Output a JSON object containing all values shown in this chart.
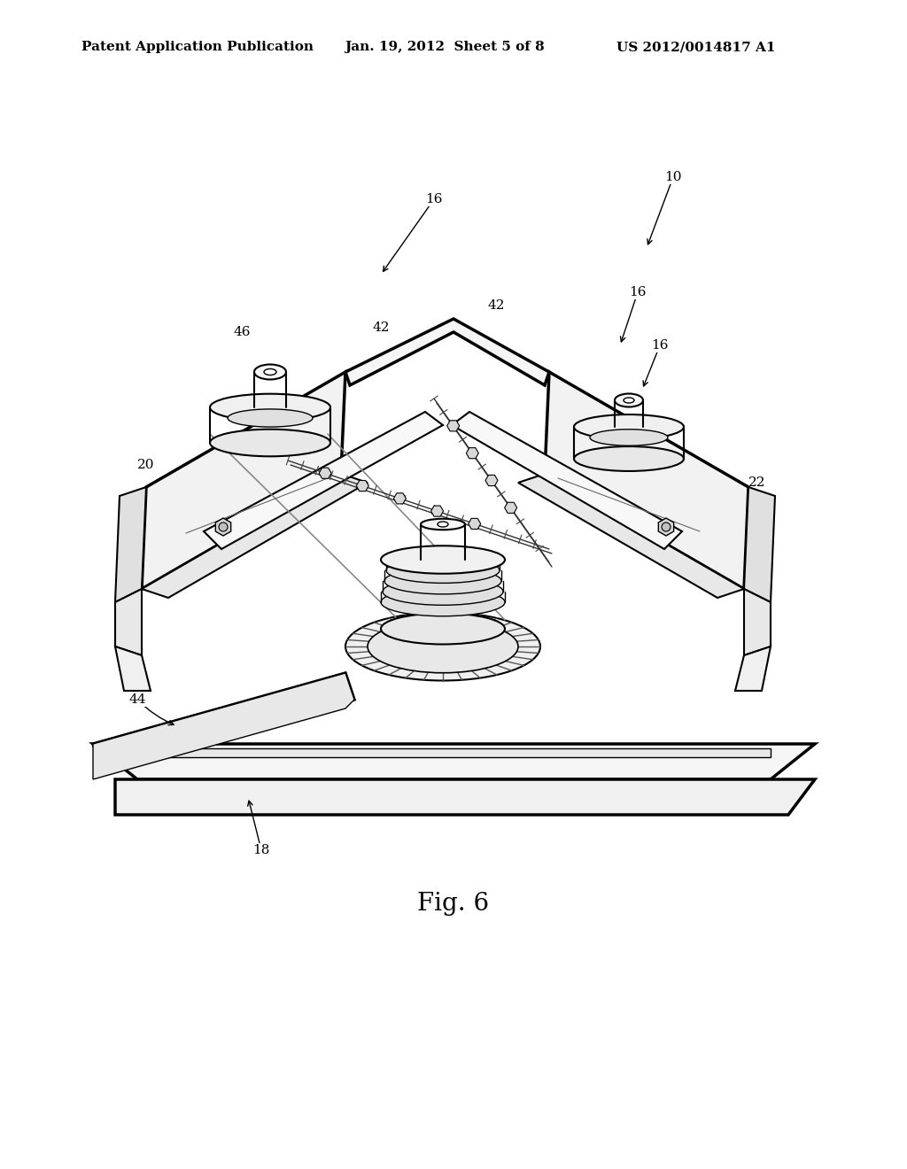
{
  "bg_color": "#ffffff",
  "header_left": "Patent Application Publication",
  "header_center": "Jan. 19, 2012  Sheet 5 of 8",
  "header_right": "US 2012/0014817 A1",
  "fig_label": "Fig. 6",
  "header_fontsize": 11,
  "fig_label_fontsize": 20,
  "line_color": "#000000",
  "gray_fill": "#f0f0f0",
  "dark_gray": "#c8c8c8",
  "mid_gray": "#e0e0e0"
}
